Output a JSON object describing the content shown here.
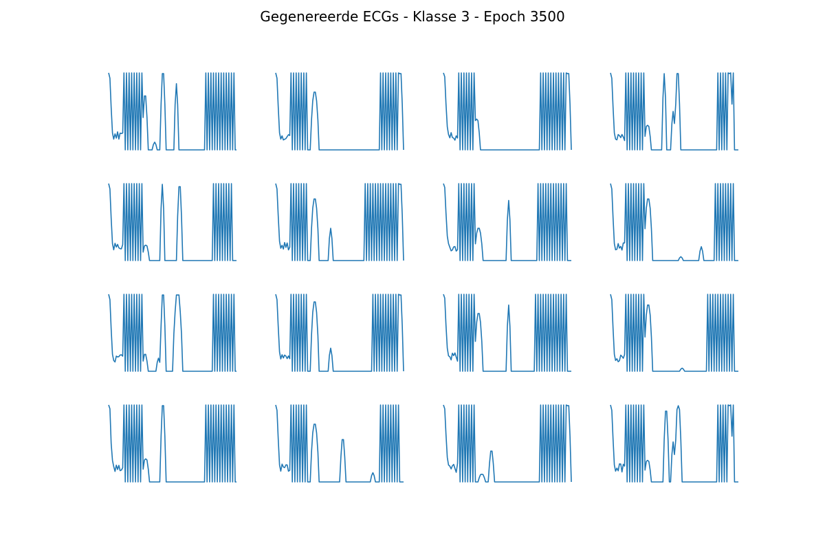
{
  "chart_data": {
    "type": "line",
    "title": "Gegenereerde ECGs - Klasse 3 - Epoch 3500",
    "layout": {
      "rows": 4,
      "cols": 4
    },
    "axes_visible": false,
    "grid": false,
    "line_color": "#1f77b4",
    "ylim": [
      0,
      1
    ],
    "n_points": 187,
    "panels": [
      {
        "row": 1,
        "col": 1,
        "descent": [
          1.0,
          0.93,
          0.55,
          0.22,
          0.14
        ],
        "dense": [
          [
            12,
            26
          ],
          [
            75,
            98
          ]
        ],
        "bumps": [
          [
            27,
            30,
            0.7
          ],
          [
            41,
            44,
            0.99
          ],
          [
            52,
            54,
            0.86
          ],
          [
            35,
            37,
            0.1
          ]
        ]
      },
      {
        "row": 1,
        "col": 2,
        "descent": [
          1.0,
          0.93,
          0.56,
          0.22,
          0.14
        ],
        "dense": [
          [
            12,
            24
          ],
          [
            82,
            96
          ]
        ],
        "bumps": [
          [
            28,
            33,
            0.75
          ],
          [
            96,
            99,
            0.99
          ]
        ]
      },
      {
        "row": 1,
        "col": 3,
        "descent": [
          1.0,
          0.95,
          0.6,
          0.3,
          0.2
        ],
        "dense": [
          [
            12,
            24
          ],
          [
            75,
            96
          ]
        ],
        "bumps": [
          [
            24,
            28,
            0.4
          ],
          [
            96,
            99,
            0.99
          ]
        ]
      },
      {
        "row": 1,
        "col": 4,
        "descent": [
          1.0,
          0.93,
          0.56,
          0.22,
          0.14
        ],
        "dense": [
          [
            12,
            26
          ],
          [
            84,
            96
          ]
        ],
        "bumps": [
          [
            27,
            31,
            0.32
          ],
          [
            41,
            43,
            0.99
          ],
          [
            48,
            50,
            0.5
          ],
          [
            51,
            54,
            0.99
          ],
          [
            92,
            95,
            0.99
          ]
        ]
      },
      {
        "row": 2,
        "col": 1,
        "descent": [
          1.0,
          0.93,
          0.55,
          0.22,
          0.14
        ],
        "dense": [
          [
            12,
            26
          ],
          [
            82,
            96
          ]
        ],
        "bumps": [
          [
            27,
            31,
            0.2
          ],
          [
            41,
            43,
            0.99
          ],
          [
            54,
            57,
            0.96
          ]
        ]
      },
      {
        "row": 2,
        "col": 2,
        "descent": [
          1.0,
          0.93,
          0.58,
          0.25,
          0.16
        ],
        "dense": [
          [
            12,
            24
          ],
          [
            70,
            96
          ]
        ],
        "bumps": [
          [
            28,
            33,
            0.8
          ],
          [
            42,
            44,
            0.42
          ],
          [
            96,
            99,
            0.99
          ]
        ]
      },
      {
        "row": 2,
        "col": 3,
        "descent": [
          1.0,
          0.95,
          0.62,
          0.32,
          0.22
        ],
        "dense": [
          [
            12,
            24
          ],
          [
            74,
            96
          ]
        ],
        "bumps": [
          [
            25,
            30,
            0.42
          ],
          [
            50,
            52,
            0.78
          ]
        ]
      },
      {
        "row": 2,
        "col": 4,
        "descent": [
          1.0,
          0.93,
          0.56,
          0.22,
          0.14
        ],
        "dense": [
          [
            12,
            26
          ],
          [
            82,
            96
          ]
        ],
        "bumps": [
          [
            27,
            32,
            0.8
          ],
          [
            54,
            56,
            0.05
          ],
          [
            70,
            72,
            0.18
          ]
        ]
      },
      {
        "row": 3,
        "col": 1,
        "descent": [
          1.0,
          0.93,
          0.55,
          0.22,
          0.14
        ],
        "dense": [
          [
            12,
            26
          ],
          [
            82,
            98
          ]
        ],
        "bumps": [
          [
            27,
            30,
            0.22
          ],
          [
            38,
            40,
            0.17
          ],
          [
            41,
            44,
            0.99
          ],
          [
            51,
            57,
            0.99
          ]
        ]
      },
      {
        "row": 3,
        "col": 2,
        "descent": [
          1.0,
          0.93,
          0.58,
          0.25,
          0.16
        ],
        "dense": [
          [
            12,
            24
          ],
          [
            75,
            96
          ]
        ],
        "bumps": [
          [
            28,
            33,
            0.9
          ],
          [
            42,
            44,
            0.3
          ],
          [
            96,
            99,
            0.99
          ]
        ]
      },
      {
        "row": 3,
        "col": 3,
        "descent": [
          1.0,
          0.95,
          0.6,
          0.3,
          0.2
        ],
        "dense": [
          [
            12,
            24
          ],
          [
            72,
            96
          ]
        ],
        "bumps": [
          [
            25,
            30,
            0.75
          ],
          [
            50,
            52,
            0.86
          ]
        ]
      },
      {
        "row": 3,
        "col": 4,
        "descent": [
          1.0,
          0.93,
          0.56,
          0.22,
          0.14
        ],
        "dense": [
          [
            12,
            26
          ],
          [
            75,
            96
          ]
        ],
        "bumps": [
          [
            27,
            32,
            0.86
          ],
          [
            55,
            57,
            0.04
          ]
        ]
      },
      {
        "row": 4,
        "col": 1,
        "descent": [
          1.0,
          0.95,
          0.5,
          0.28,
          0.2
        ],
        "dense": [
          [
            12,
            26
          ],
          [
            75,
            98
          ]
        ],
        "bumps": [
          [
            27,
            31,
            0.3
          ],
          [
            41,
            44,
            0.99
          ]
        ]
      },
      {
        "row": 4,
        "col": 2,
        "descent": [
          1.0,
          0.93,
          0.56,
          0.22,
          0.14
        ],
        "dense": [
          [
            12,
            24
          ],
          [
            82,
            96
          ]
        ],
        "bumps": [
          [
            28,
            33,
            0.75
          ],
          [
            51,
            54,
            0.55
          ],
          [
            75,
            77,
            0.12
          ]
        ]
      },
      {
        "row": 4,
        "col": 3,
        "descent": [
          1.0,
          0.95,
          0.62,
          0.32,
          0.22
        ],
        "dense": [
          [
            12,
            24
          ],
          [
            75,
            96
          ]
        ],
        "bumps": [
          [
            28,
            32,
            0.1
          ],
          [
            36,
            39,
            0.4
          ],
          [
            96,
            99,
            0.99
          ]
        ]
      },
      {
        "row": 4,
        "col": 4,
        "descent": [
          1.0,
          0.93,
          0.56,
          0.22,
          0.14
        ],
        "dense": [
          [
            12,
            26
          ],
          [
            84,
            96
          ]
        ],
        "bumps": [
          [
            27,
            31,
            0.28
          ],
          [
            42,
            45,
            0.92
          ],
          [
            48,
            50,
            0.52
          ],
          [
            51,
            55,
            0.99
          ],
          [
            92,
            95,
            0.99
          ]
        ]
      }
    ]
  }
}
